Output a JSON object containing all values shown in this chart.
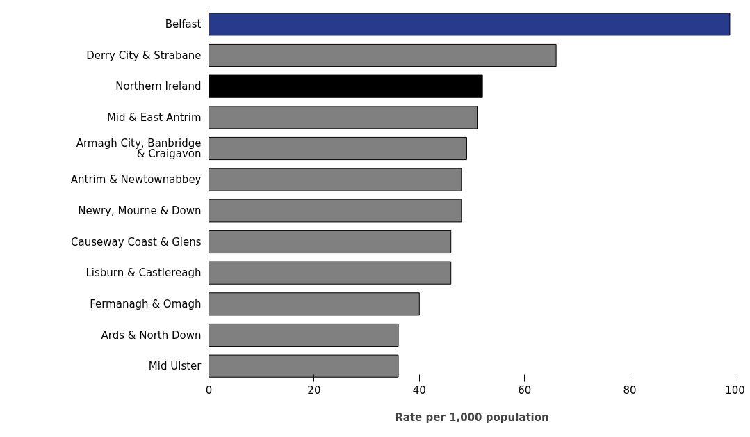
{
  "chart_data": {
    "type": "bar",
    "orientation": "horizontal",
    "xlabel": "Rate per 1,000 population",
    "categories": [
      "Belfast",
      "Derry City & Strabane",
      "Northern Ireland",
      "Mid & East Antrim",
      "Armagh City, Banbridge & Craigavon",
      "Antrim & Newtownabbey",
      "Newry, Mourne & Down",
      "Causeway Coast & Glens",
      "Lisburn & Castlereagh",
      "Fermanagh & Omagh",
      "Ards & North Down",
      "Mid Ulster"
    ],
    "values": [
      99,
      66,
      52,
      51,
      49,
      48,
      48,
      46,
      46,
      40,
      36,
      36
    ],
    "colors": [
      "#283a8c",
      "#808080",
      "#000000",
      "#808080",
      "#808080",
      "#808080",
      "#808080",
      "#808080",
      "#808080",
      "#808080",
      "#808080",
      "#808080"
    ],
    "xlim": [
      0,
      100
    ],
    "xticks": [
      0,
      20,
      40,
      60,
      80,
      100
    ],
    "grid": false
  }
}
